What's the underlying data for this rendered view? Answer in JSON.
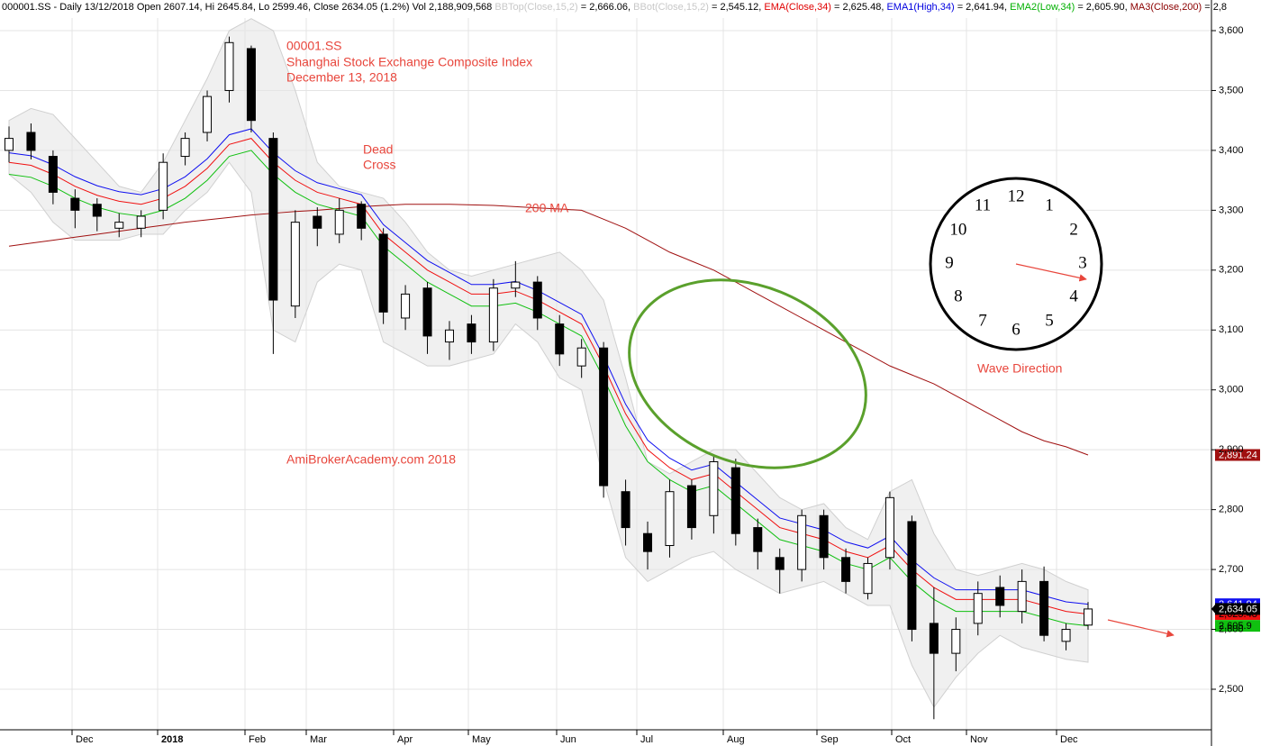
{
  "chart_data": {
    "type": "candlestick",
    "header": [
      {
        "text": "000001.SS - Daily 13/12/2018 Open 2607.14, Hi 2645.84, Lo 2599.46, Close 2634.05 (1.2%) Vol 2,188,909,568 ",
        "color": "#000000"
      },
      {
        "text": "BBTop(Close,15,2)",
        "color": "#c8c8c8"
      },
      {
        "text": " = 2,666.06, ",
        "color": "#000000"
      },
      {
        "text": "BBot(Close,15,2)",
        "color": "#c8c8c8"
      },
      {
        "text": " = 2,545.12, ",
        "color": "#000000"
      },
      {
        "text": "EMA(Close,34)",
        "color": "#e00000"
      },
      {
        "text": " = 2,625.48, ",
        "color": "#000000"
      },
      {
        "text": "EMA1(High,34)",
        "color": "#0000e0"
      },
      {
        "text": " = 2,641.94, ",
        "color": "#000000"
      },
      {
        "text": "EMA2(Low,34)",
        "color": "#00b000"
      },
      {
        "text": " = 2,605.90, ",
        "color": "#000000"
      },
      {
        "text": "MA3(Close,200)",
        "color": "#8b0000"
      },
      {
        "text": " = 2,8",
        "color": "#000000"
      }
    ],
    "annotations": {
      "symbol": "00001.SS",
      "name": "Shanghai Stock Exchange Composite Index",
      "date": "December 13, 2018",
      "dead": "Dead",
      "cross": "Cross",
      "ma_label": "200 MA",
      "site": "AmiBrokerAcademy.com  2018",
      "wave": "Wave Direction"
    },
    "clock_numbers": [
      12,
      1,
      2,
      3,
      4,
      5,
      6,
      7,
      8,
      9,
      10,
      11
    ],
    "xtick_labels": [
      "Dec",
      "2018",
      "Feb",
      "Mar",
      "Apr",
      "May",
      "Jun",
      "Jul",
      "Aug",
      "Sep",
      "Oct",
      "Nov",
      "Dec"
    ],
    "ylim": [
      2500,
      3600
    ],
    "yticks": [
      {
        "value": 2500,
        "label": "2,500"
      },
      {
        "value": 2600,
        "label": "2,600"
      },
      {
        "value": 2700,
        "label": "2,700"
      },
      {
        "value": 2800,
        "label": "2,800"
      },
      {
        "value": 2900,
        "label": "2,900"
      },
      {
        "value": 3000,
        "label": "3,000"
      },
      {
        "value": 3100,
        "label": "3,100"
      },
      {
        "value": 3200,
        "label": "3,200"
      },
      {
        "value": 3300,
        "label": "3,300"
      },
      {
        "value": 3400,
        "label": "3,400"
      },
      {
        "value": 3500,
        "label": "3,500"
      },
      {
        "value": 3600,
        "label": "3,600"
      }
    ],
    "grid": true,
    "candles": {
      "open": [
        3400,
        3430,
        3390,
        3320,
        3310,
        3270,
        3270,
        3300,
        3390,
        3430,
        3500,
        3570,
        3420,
        3140,
        3290,
        3260,
        3310,
        3260,
        3120,
        3170,
        3080,
        3110,
        3080,
        3170,
        3180,
        3110,
        3040,
        3070,
        2830,
        2760,
        2740,
        2840,
        2790,
        2870,
        2770,
        2720,
        2700,
        2790,
        2720,
        2660,
        2720,
        2780,
        2610,
        2560,
        2610,
        2670,
        2630,
        2680,
        2580,
        2607.14
      ],
      "high": [
        3440,
        3445,
        3400,
        3335,
        3320,
        3295,
        3300,
        3395,
        3430,
        3500,
        3590,
        3575,
        3430,
        3300,
        3305,
        3320,
        3315,
        3270,
        3175,
        3180,
        3115,
        3125,
        3185,
        3215,
        3190,
        3125,
        3085,
        3080,
        2850,
        2780,
        2850,
        2850,
        2890,
        2885,
        2785,
        2735,
        2800,
        2800,
        2735,
        2720,
        2830,
        2790,
        2670,
        2620,
        2680,
        2690,
        2700,
        2705,
        2610,
        2645.84
      ],
      "low": [
        3380,
        3385,
        3310,
        3270,
        3265,
        3255,
        3255,
        3285,
        3375,
        3415,
        3480,
        3430,
        3060,
        3120,
        3240,
        3245,
        3250,
        3110,
        3100,
        3060,
        3050,
        3060,
        3065,
        3155,
        3100,
        3040,
        3020,
        2820,
        2740,
        2700,
        2720,
        2750,
        2760,
        2740,
        2700,
        2660,
        2680,
        2700,
        2660,
        2650,
        2700,
        2580,
        2450,
        2530,
        2590,
        2620,
        2610,
        2580,
        2565,
        2599.46
      ],
      "close": [
        3420,
        3400,
        3330,
        3300,
        3290,
        3280,
        3290,
        3380,
        3420,
        3490,
        3580,
        3450,
        3150,
        3280,
        3270,
        3300,
        3270,
        3130,
        3160,
        3090,
        3100,
        3080,
        3170,
        3180,
        3120,
        3060,
        3070,
        2840,
        2770,
        2730,
        2830,
        2770,
        2880,
        2760,
        2730,
        2700,
        2790,
        2720,
        2680,
        2710,
        2820,
        2600,
        2560,
        2600,
        2660,
        2640,
        2680,
        2590,
        2600,
        2634.05
      ],
      "close_tag": "2,634.05"
    },
    "bands": {
      "name": "BB",
      "color": "#e6e6e6",
      "top": [
        3450,
        3470,
        3460,
        3420,
        3380,
        3340,
        3330,
        3380,
        3450,
        3520,
        3600,
        3620,
        3600,
        3500,
        3380,
        3340,
        3330,
        3320,
        3280,
        3230,
        3200,
        3190,
        3200,
        3210,
        3220,
        3230,
        3200,
        3150,
        3020,
        2880,
        2860,
        2880,
        2900,
        2900,
        2860,
        2820,
        2800,
        2810,
        2770,
        2750,
        2830,
        2850,
        2760,
        2700,
        2690,
        2700,
        2710,
        2700,
        2680,
        2666.06
      ],
      "bottom": [
        3360,
        3330,
        3280,
        3250,
        3250,
        3250,
        3260,
        3260,
        3300,
        3330,
        3380,
        3330,
        3100,
        3080,
        3180,
        3210,
        3200,
        3080,
        3060,
        3040,
        3040,
        3050,
        3060,
        3110,
        3080,
        3020,
        3000,
        2850,
        2720,
        2680,
        2700,
        2720,
        2730,
        2700,
        2680,
        2660,
        2670,
        2680,
        2660,
        2640,
        2640,
        2540,
        2470,
        2520,
        2560,
        2590,
        2570,
        2560,
        2550,
        2545.12
      ]
    },
    "series": [
      {
        "name": "MA3",
        "color": "#a01010",
        "tag": "2,891.24",
        "tag_text": "#ffffff",
        "values": [
          3240,
          3245,
          3250,
          3255,
          3260,
          3265,
          3270,
          3275,
          3280,
          3284,
          3288,
          3292,
          3295,
          3298,
          3300,
          3303,
          3306,
          3308,
          3310,
          3310,
          3310,
          3309,
          3308,
          3306,
          3304,
          3302,
          3300,
          3285,
          3270,
          3250,
          3230,
          3215,
          3200,
          3180,
          3160,
          3140,
          3120,
          3100,
          3080,
          3060,
          3040,
          3025,
          3010,
          2990,
          2970,
          2950,
          2930,
          2915,
          2905,
          2891.24
        ]
      },
      {
        "name": "EMA1",
        "color": "#1010f0",
        "tag": "2,641.94",
        "tag_text": "#ffffff",
        "values": [
          3396,
          3391,
          3376,
          3356,
          3341,
          3331,
          3326,
          3336,
          3356,
          3386,
          3426,
          3436,
          3396,
          3366,
          3346,
          3336,
          3326,
          3276,
          3246,
          3216,
          3196,
          3176,
          3176,
          3181,
          3166,
          3146,
          3126,
          3056,
          2976,
          2916,
          2886,
          2866,
          2876,
          2846,
          2816,
          2786,
          2776,
          2766,
          2746,
          2736,
          2756,
          2716,
          2686,
          2666,
          2666,
          2666,
          2666,
          2656,
          2646,
          2641.94
        ]
      },
      {
        "name": "EMA",
        "color": "#f01010",
        "tag": "2,625.48",
        "tag_text": "#000000",
        "values": [
          3380,
          3375,
          3360,
          3340,
          3325,
          3315,
          3310,
          3320,
          3340,
          3370,
          3410,
          3420,
          3380,
          3350,
          3330,
          3320,
          3310,
          3260,
          3230,
          3200,
          3180,
          3160,
          3160,
          3165,
          3150,
          3130,
          3110,
          3040,
          2960,
          2900,
          2870,
          2850,
          2860,
          2830,
          2800,
          2770,
          2760,
          2750,
          2730,
          2720,
          2740,
          2700,
          2670,
          2650,
          2650,
          2650,
          2650,
          2640,
          2630,
          2625.48
        ]
      },
      {
        "name": "EMA2",
        "color": "#10c010",
        "tag": "2,605.9",
        "tag_text": "#000000",
        "values": [
          3360,
          3355,
          3340,
          3320,
          3305,
          3295,
          3290,
          3300,
          3320,
          3350,
          3390,
          3400,
          3360,
          3330,
          3310,
          3300,
          3290,
          3240,
          3210,
          3180,
          3160,
          3140,
          3140,
          3145,
          3130,
          3110,
          3090,
          3020,
          2940,
          2880,
          2850,
          2830,
          2840,
          2810,
          2780,
          2750,
          2740,
          2730,
          2710,
          2700,
          2720,
          2680,
          2650,
          2630,
          2630,
          2630,
          2630,
          2620,
          2610,
          2605.9
        ]
      }
    ]
  }
}
